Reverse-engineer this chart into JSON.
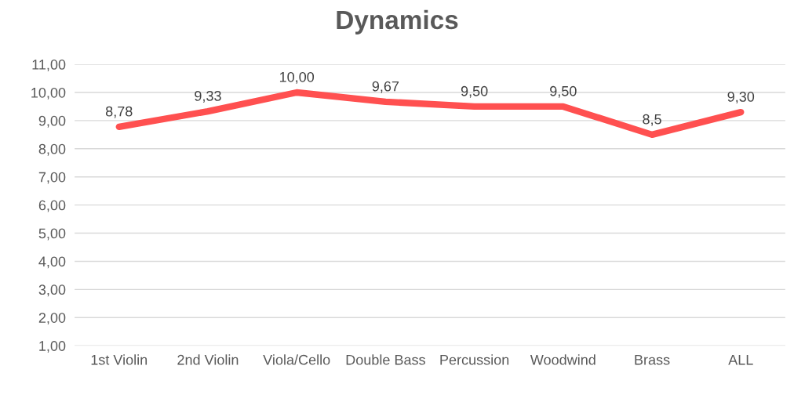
{
  "chart_data": {
    "type": "line",
    "title": "Dynamics",
    "categories": [
      "1st Violin",
      "2nd Violin",
      "Viola/Cello",
      "Double Bass",
      "Percussion",
      "Woodwind",
      "Brass",
      "ALL"
    ],
    "series": [
      {
        "color": "#ff5050",
        "values": [
          8.78,
          9.33,
          10.0,
          9.67,
          9.5,
          9.5,
          8.5,
          9.3
        ],
        "value_labels": [
          "8,78",
          "9,33",
          "10,00",
          "9,67",
          "9,50",
          "9,50",
          "8,5",
          "9,30"
        ]
      }
    ],
    "ylim": [
      1,
      11
    ],
    "yticks": [
      {
        "value": 1,
        "label": "1,00"
      },
      {
        "value": 2,
        "label": "2,00"
      },
      {
        "value": 3,
        "label": "3,00"
      },
      {
        "value": 4,
        "label": "4,00"
      },
      {
        "value": 5,
        "label": "5,00"
      },
      {
        "value": 6,
        "label": "6,00"
      },
      {
        "value": 7,
        "label": "7,00"
      },
      {
        "value": 8,
        "label": "8,00"
      },
      {
        "value": 9,
        "label": "9,00"
      },
      {
        "value": 10,
        "label": "10,00"
      },
      {
        "value": 11,
        "label": "11,00"
      }
    ],
    "grid": "y",
    "marker": "none",
    "line_style": "solid"
  }
}
